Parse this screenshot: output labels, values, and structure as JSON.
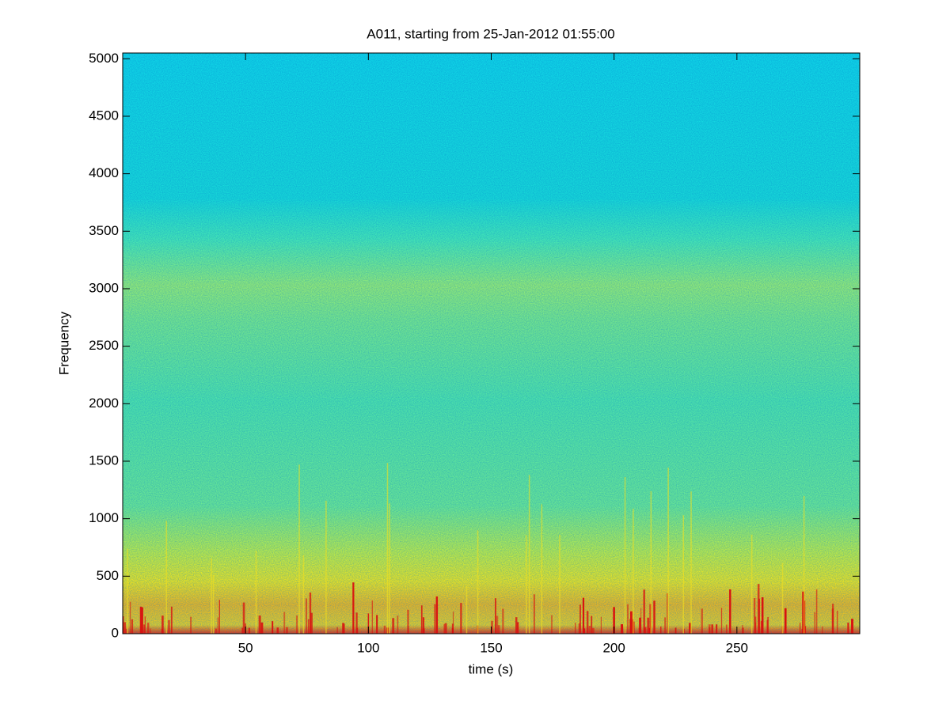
{
  "chart_data": {
    "type": "spectrogram",
    "title": "A011, starting from 25-Jan-2012 01:55:00",
    "x_label": "time (s)",
    "y_label": "Frequency",
    "xlim": [
      0,
      300
    ],
    "xticks": [
      50,
      100,
      150,
      200,
      250
    ],
    "ylim": [
      0,
      5050
    ],
    "yticks": [
      0,
      500,
      1000,
      1500,
      2000,
      2500,
      3000,
      3500,
      4000,
      4500,
      5000
    ],
    "colormap": "jet"
  }
}
